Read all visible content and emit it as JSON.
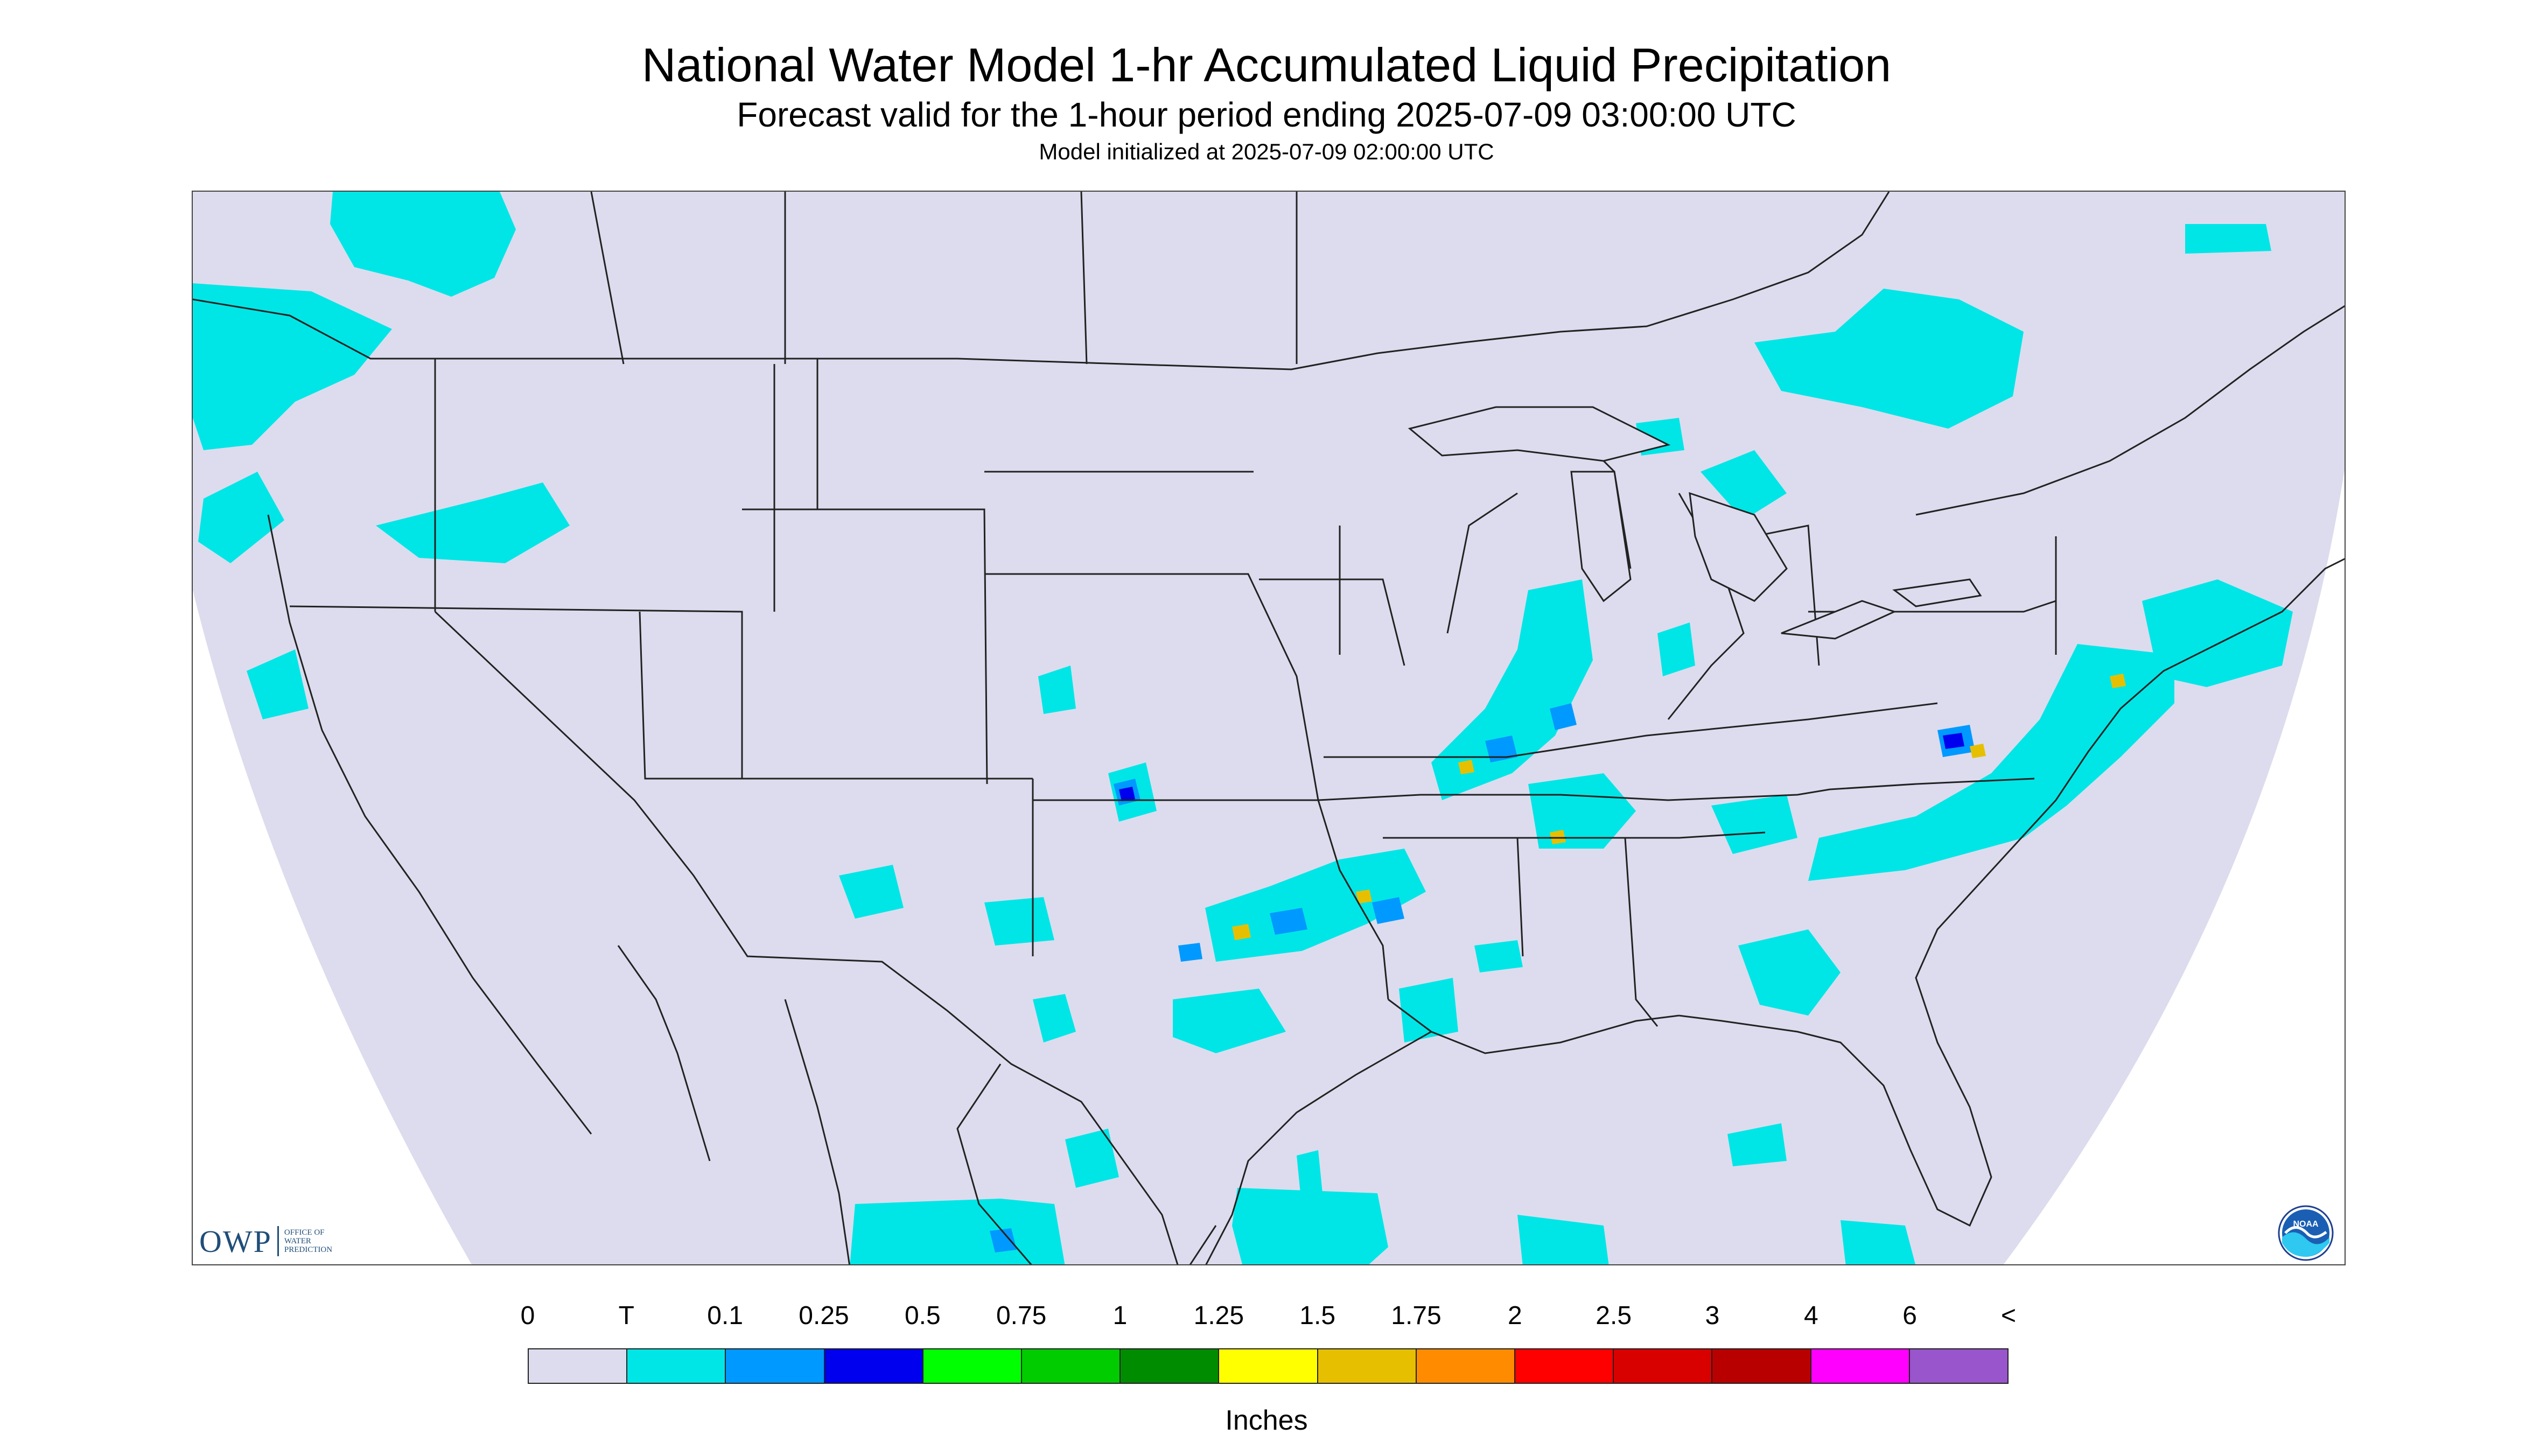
{
  "header": {
    "title": "National Water Model 1-hr Accumulated Liquid Precipitation",
    "subtitle": "Forecast valid for the 1-hour period ending 2025-07-09 03:00:00 UTC",
    "init_line": "Model initialized at 2025-07-09 02:00:00 UTC"
  },
  "logos": {
    "owp_main": "OWP",
    "owp_line1": "OFFICE OF",
    "owp_line2": "WATER",
    "owp_line3": "PREDICTION",
    "noaa_text": "NOAA"
  },
  "legend": {
    "labels": [
      "0",
      "T",
      "0.1",
      "0.25",
      "0.5",
      "0.75",
      "1",
      "1.25",
      "1.5",
      "1.75",
      "2",
      "2.5",
      "3",
      "4",
      "6",
      "<"
    ],
    "colors": [
      "#dcdcee",
      "#00e6e6",
      "#0099ff",
      "#0000ee",
      "#00ff00",
      "#00cc00",
      "#008c00",
      "#ffff00",
      "#e6c000",
      "#ff8c00",
      "#ff0000",
      "#d90000",
      "#b80000",
      "#ff00ff",
      "#9955cc"
    ],
    "units": "Inches"
  },
  "map": {
    "domain_color": "#dcdcee",
    "trace_color": "#00e6e6",
    "light_color": "#0099ff",
    "moderate_color": "#0000ee",
    "heavy_color": "#e6c000",
    "border_color": "#222222"
  }
}
